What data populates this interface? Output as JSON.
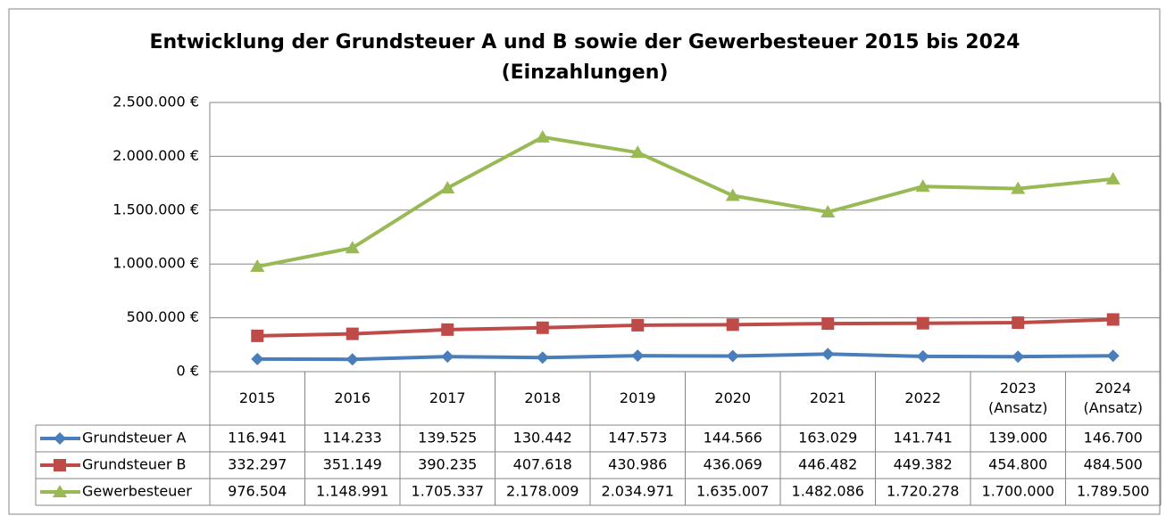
{
  "chart_data": {
    "type": "line",
    "title": "Entwicklung der Grundsteuer A und B sowie der Gewerbesteuer 2015 bis 2024",
    "subtitle": "(Einzahlungen)",
    "categories": [
      "2015",
      "2016",
      "2017",
      "2018",
      "2019",
      "2020",
      "2021",
      "2022",
      "2023\n(Ansatz)",
      "2024\n(Ansatz)"
    ],
    "ylim": [
      0,
      2500000
    ],
    "yticks": [
      {
        "value": 0,
        "label": "0 €"
      },
      {
        "value": 500000,
        "label": "500.000 €"
      },
      {
        "value": 1000000,
        "label": "1.000.000 €"
      },
      {
        "value": 1500000,
        "label": "1.500.000 €"
      },
      {
        "value": 2000000,
        "label": "2.000.000 €"
      },
      {
        "value": 2500000,
        "label": "2.500.000 €"
      }
    ],
    "grid": true,
    "series": [
      {
        "name": "Grundsteuer A",
        "color": "#4a7ebb",
        "marker": "diamond",
        "values": [
          116941,
          114233,
          139525,
          130442,
          147573,
          144566,
          163029,
          141741,
          139000,
          146700
        ],
        "value_labels": [
          "116.941",
          "114.233",
          "139.525",
          "130.442",
          "147.573",
          "144.566",
          "163.029",
          "141.741",
          "139.000",
          "146.700"
        ]
      },
      {
        "name": "Grundsteuer B",
        "color": "#be4b48",
        "marker": "square",
        "values": [
          332297,
          351149,
          390235,
          407618,
          430986,
          436069,
          446482,
          449382,
          454800,
          484500
        ],
        "value_labels": [
          "332.297",
          "351.149",
          "390.235",
          "407.618",
          "430.986",
          "436.069",
          "446.482",
          "449.382",
          "454.800",
          "484.500"
        ]
      },
      {
        "name": "Gewerbesteuer",
        "color": "#98b954",
        "marker": "triangle",
        "values": [
          976504,
          1148991,
          1705337,
          2178009,
          2034971,
          1635007,
          1482086,
          1720278,
          1700000,
          1789500
        ],
        "value_labels": [
          "976.504",
          "1.148.991",
          "1.705.337",
          "2.178.009",
          "2.034.971",
          "1.635.007",
          "1.482.086",
          "1.720.278",
          "1.700.000",
          "1.789.500"
        ]
      }
    ]
  }
}
